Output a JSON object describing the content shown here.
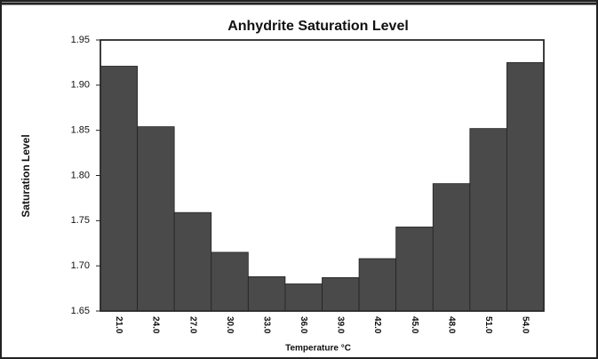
{
  "chart_data": {
    "type": "bar",
    "title": "Anhydrite Saturation Level",
    "x_label": "Temperature °C",
    "y_label": "Saturation Level",
    "categories": [
      "21.0",
      "24.0",
      "27.0",
      "30.0",
      "33.0",
      "36.0",
      "39.0",
      "42.0",
      "45.0",
      "48.0",
      "51.0",
      "54.0"
    ],
    "values": [
      1.921,
      1.854,
      1.759,
      1.715,
      1.688,
      1.68,
      1.687,
      1.708,
      1.743,
      1.791,
      1.852,
      1.925
    ],
    "color": "#4a4a4a",
    "ylim": [
      1.65,
      1.95
    ],
    "yticks": [
      1.65,
      {
        "value": 1.7,
        "label": "1.70"
      },
      1.75,
      {
        "value": 1.8,
        "label": "1.80"
      },
      1.85,
      {
        "value": 1.9,
        "label": "1.90"
      },
      1.95
    ]
  }
}
